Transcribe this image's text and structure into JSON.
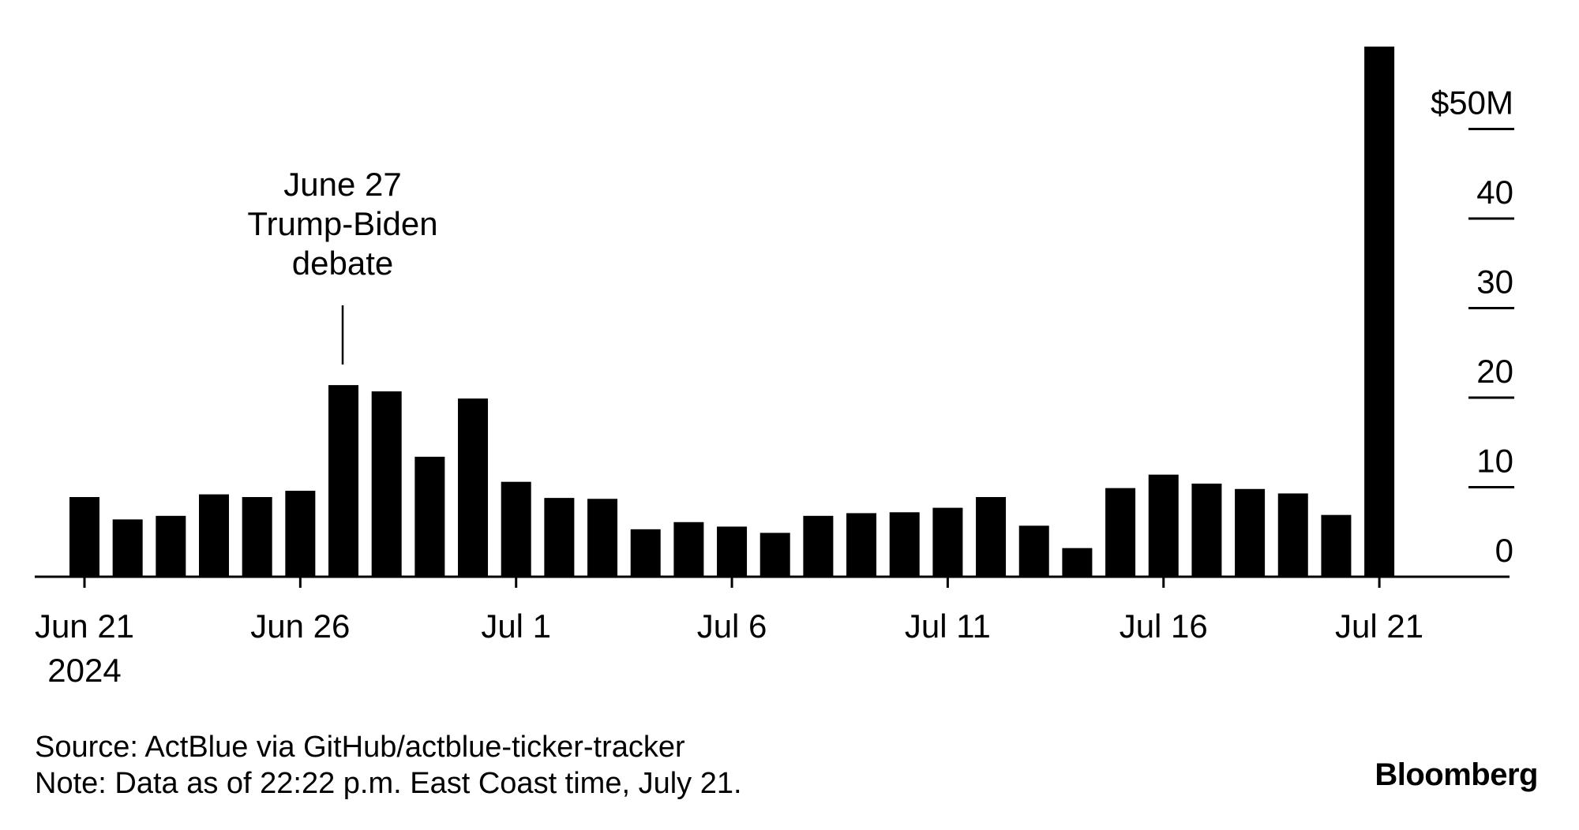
{
  "chart_data": {
    "type": "bar",
    "x": [
      "Jun 21",
      "Jun 22",
      "Jun 23",
      "Jun 24",
      "Jun 25",
      "Jun 26",
      "Jun 27",
      "Jun 28",
      "Jun 29",
      "Jun 30",
      "Jul 1",
      "Jul 2",
      "Jul 3",
      "Jul 4",
      "Jul 5",
      "Jul 6",
      "Jul 7",
      "Jul 8",
      "Jul 9",
      "Jul 10",
      "Jul 11",
      "Jul 12",
      "Jul 13",
      "Jul 14",
      "Jul 15",
      "Jul 16",
      "Jul 17",
      "Jul 18",
      "Jul 19",
      "Jul 20",
      "Jul 21"
    ],
    "values": [
      8.9,
      6.4,
      6.8,
      9.2,
      8.9,
      9.6,
      21.4,
      20.7,
      13.4,
      19.9,
      10.6,
      8.8,
      8.7,
      5.3,
      6.1,
      5.6,
      4.9,
      6.8,
      7.1,
      7.2,
      7.7,
      8.9,
      5.7,
      3.2,
      9.9,
      11.4,
      10.4,
      9.8,
      9.3,
      6.9,
      59.2
    ],
    "xticks": [
      {
        "x": "Jun 21",
        "label": "Jun 21"
      },
      {
        "x": "Jun 26",
        "label": "Jun 26"
      },
      {
        "x": "Jul 1",
        "label": "Jul 1"
      },
      {
        "x": "Jul 6",
        "label": "Jul 6"
      },
      {
        "x": "Jul 11",
        "label": "Jul 11"
      },
      {
        "x": "Jul 16",
        "label": "Jul 16"
      },
      {
        "x": "Jul 21",
        "label": "Jul 21"
      }
    ],
    "year_label": "2024",
    "yticks": [
      {
        "value": 0,
        "label": "0"
      },
      {
        "value": 10,
        "label": "10"
      },
      {
        "value": 20,
        "label": "20"
      },
      {
        "value": 30,
        "label": "30"
      },
      {
        "value": 40,
        "label": "40"
      },
      {
        "value": 50,
        "label": "$50M"
      }
    ],
    "ylim": [
      0,
      59.2
    ],
    "y_axis_side": "right",
    "grid": false,
    "bar_color": "#000000",
    "annotation": {
      "x": "Jun 27",
      "lines": [
        "June 27",
        "Trump-Biden",
        "debate"
      ]
    }
  },
  "footer": {
    "source": "Source: ActBlue via GitHub/actblue-ticker-tracker",
    "note": "Note: Data as of 22:22 p.m. East Coast time, July 21."
  },
  "brand": "Bloomberg"
}
